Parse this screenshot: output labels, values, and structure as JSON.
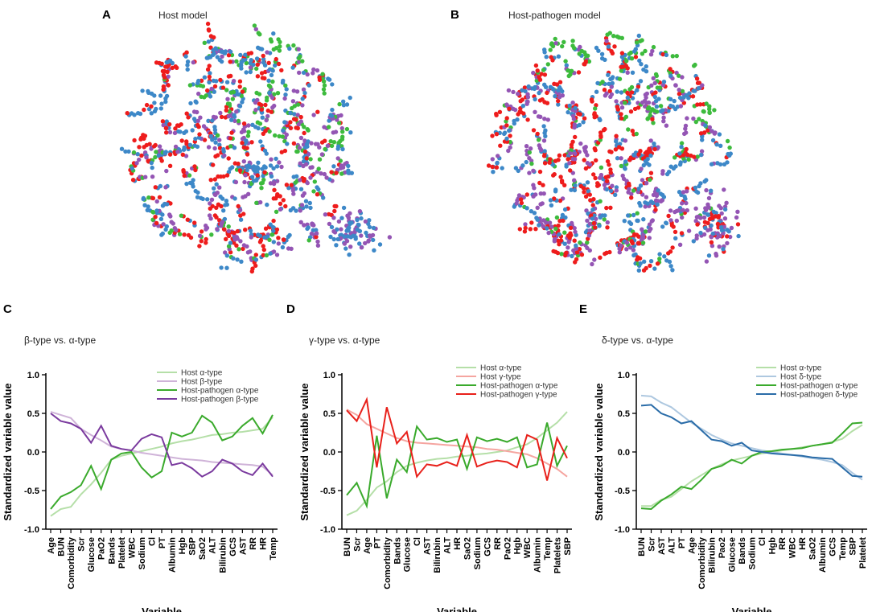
{
  "colors": {
    "red": "#ee1c1c",
    "blue": "#3d88c8",
    "green": "#3dbb3d",
    "purple": "#9455b4",
    "host_alpha": "#b5dfa8",
    "host_beta": "#cfb3d8",
    "host_gamma": "#f5a5a0",
    "host_delta": "#aec8e0",
    "hp_alpha": "#3aaa2c",
    "hp_beta": "#7a3a9e",
    "hp_gamma": "#e8201a",
    "hp_delta": "#2a6ca8"
  },
  "chart_data": [
    {
      "type": "scatter",
      "panel": "A",
      "title": "Host model",
      "series": [
        {
          "name": "red cluster",
          "color_key": "red",
          "approx_count": 500
        },
        {
          "name": "blue cluster",
          "color_key": "blue",
          "approx_count": 400
        },
        {
          "name": "green cluster",
          "color_key": "green",
          "approx_count": 250
        },
        {
          "name": "purple cluster",
          "color_key": "purple",
          "approx_count": 350
        }
      ]
    },
    {
      "type": "scatter",
      "panel": "B",
      "title": "Host-pathogen model",
      "series": [
        {
          "name": "red cluster",
          "color_key": "red",
          "approx_count": 450
        },
        {
          "name": "blue cluster",
          "color_key": "blue",
          "approx_count": 420
        },
        {
          "name": "green cluster",
          "color_key": "green",
          "approx_count": 260
        },
        {
          "name": "purple cluster",
          "color_key": "purple",
          "approx_count": 380
        }
      ]
    },
    {
      "type": "line",
      "panel": "C",
      "title": "β-type vs. α-type",
      "xlabel": "Variable",
      "ylabel": "Standardized variable value",
      "ylim": [
        -1.0,
        1.0
      ],
      "yticks": [
        "1.0",
        "0.5",
        "0.0",
        "-0.5",
        "-1.0"
      ],
      "categories": [
        "Age",
        "BUN",
        "Comorbidity",
        "Scr",
        "Glucose",
        "PaO2",
        "Bands",
        "Platelet",
        "WBC",
        "Sodium",
        "Cl",
        "PT",
        "Albumin",
        "Hgb",
        "SBP",
        "SaO2",
        "ALT",
        "Bilirubin",
        "GCS",
        "AST",
        "RR",
        "HR",
        "Temp"
      ],
      "series": [
        {
          "name": "Host α-type",
          "color_key": "host_alpha",
          "values": [
            -0.83,
            -0.74,
            -0.71,
            -0.55,
            -0.42,
            -0.27,
            -0.1,
            -0.05,
            -0.02,
            0.01,
            0.04,
            0.07,
            0.11,
            0.14,
            0.16,
            0.19,
            0.22,
            0.23,
            0.25,
            0.26,
            0.28,
            0.3,
            0.45
          ]
        },
        {
          "name": "Host β-type",
          "color_key": "host_beta",
          "values": [
            0.52,
            0.48,
            0.44,
            0.3,
            0.22,
            0.15,
            0.07,
            0.04,
            0.02,
            -0.01,
            -0.03,
            -0.05,
            -0.07,
            -0.09,
            -0.1,
            -0.11,
            -0.13,
            -0.14,
            -0.15,
            -0.16,
            -0.17,
            -0.19,
            -0.3
          ]
        },
        {
          "name": "Host-pathogen α-type",
          "color_key": "hp_alpha",
          "values": [
            -0.74,
            -0.58,
            -0.52,
            -0.43,
            -0.18,
            -0.48,
            -0.1,
            -0.02,
            0.0,
            -0.2,
            -0.33,
            -0.25,
            0.25,
            0.2,
            0.25,
            0.47,
            0.38,
            0.15,
            0.2,
            0.34,
            0.44,
            0.24,
            0.48
          ]
        },
        {
          "name": "Host-pathogen β-type",
          "color_key": "hp_beta",
          "values": [
            0.5,
            0.4,
            0.37,
            0.3,
            0.12,
            0.34,
            0.08,
            0.04,
            0.02,
            0.17,
            0.23,
            0.19,
            -0.17,
            -0.14,
            -0.21,
            -0.32,
            -0.25,
            -0.1,
            -0.15,
            -0.25,
            -0.3,
            -0.15,
            -0.32
          ]
        }
      ]
    },
    {
      "type": "line",
      "panel": "D",
      "title": "γ-type vs. α-type",
      "xlabel": "Variable",
      "ylabel": "Standardized variable value",
      "ylim": [
        -1.0,
        1.0
      ],
      "yticks": [
        "1.0",
        "0.5",
        "0.0",
        "-0.5",
        "-1.0"
      ],
      "categories": [
        "BUN",
        "Scr",
        "Age",
        "PT",
        "Comorbidity",
        "Bands",
        "Glucose",
        "Cl",
        "AST",
        "Bilirubin",
        "ALT",
        "HR",
        "SaO2",
        "Sodium",
        "GCS",
        "RR",
        "PaO2",
        "Hgb",
        "WBC",
        "Albumin",
        "Temp",
        "Platelets",
        "SBP"
      ],
      "series": [
        {
          "name": "Host α-type",
          "color_key": "host_alpha",
          "values": [
            -0.82,
            -0.76,
            -0.62,
            -0.46,
            -0.38,
            -0.26,
            -0.18,
            -0.14,
            -0.11,
            -0.09,
            -0.08,
            -0.06,
            -0.05,
            -0.03,
            -0.02,
            0.0,
            0.02,
            0.06,
            0.1,
            0.18,
            0.28,
            0.38,
            0.52
          ]
        },
        {
          "name": "Host γ-type",
          "color_key": "host_gamma",
          "values": [
            0.55,
            0.48,
            0.36,
            0.3,
            0.24,
            0.18,
            0.14,
            0.12,
            0.11,
            0.1,
            0.09,
            0.08,
            0.07,
            0.06,
            0.04,
            0.03,
            0.01,
            -0.01,
            -0.03,
            -0.08,
            -0.15,
            -0.22,
            -0.32
          ]
        },
        {
          "name": "Host-pathogen α-type",
          "color_key": "hp_alpha",
          "values": [
            -0.56,
            -0.4,
            -0.7,
            0.21,
            -0.6,
            -0.1,
            -0.26,
            0.33,
            0.16,
            0.18,
            0.13,
            0.16,
            -0.22,
            0.19,
            0.14,
            0.17,
            0.13,
            0.19,
            -0.2,
            -0.16,
            0.38,
            -0.18,
            0.08
          ]
        },
        {
          "name": "Host-pathogen γ-type",
          "color_key": "hp_gamma",
          "values": [
            0.54,
            0.4,
            0.68,
            -0.2,
            0.58,
            0.11,
            0.26,
            -0.32,
            -0.16,
            -0.18,
            -0.13,
            -0.18,
            0.22,
            -0.19,
            -0.14,
            -0.11,
            -0.13,
            -0.2,
            0.22,
            0.16,
            -0.37,
            0.18,
            -0.08
          ]
        }
      ]
    },
    {
      "type": "line",
      "panel": "E",
      "title": "δ-type vs. α-type",
      "xlabel": "Variable",
      "ylabel": "Standardized variable value",
      "ylim": [
        -1.0,
        1.0
      ],
      "yticks": [
        "1.0",
        "0.5",
        "0.0",
        "-0.5",
        "-1.0"
      ],
      "categories": [
        "BUN",
        "Scr",
        "AST",
        "ALT",
        "PT",
        "Age",
        "Comorbidity",
        "Bilirubin",
        "Pao2",
        "Glucose",
        "Bands",
        "Sodium",
        "Cl",
        "Hgb",
        "RR",
        "WBC",
        "HR",
        "SaO2",
        "Albumin",
        "GCS",
        "Temp",
        "SBP",
        "Platelet"
      ],
      "series": [
        {
          "name": "Host α-type",
          "color_key": "host_alpha",
          "values": [
            -0.7,
            -0.7,
            -0.62,
            -0.58,
            -0.48,
            -0.38,
            -0.3,
            -0.22,
            -0.16,
            -0.11,
            -0.08,
            -0.05,
            -0.02,
            0.0,
            0.02,
            0.04,
            0.06,
            0.08,
            0.1,
            0.13,
            0.17,
            0.27,
            0.35
          ]
        },
        {
          "name": "Host δ-type",
          "color_key": "host_delta",
          "values": [
            0.73,
            0.72,
            0.64,
            0.58,
            0.48,
            0.38,
            0.3,
            0.22,
            0.16,
            0.11,
            0.08,
            0.05,
            0.02,
            0.0,
            -0.02,
            -0.04,
            -0.06,
            -0.08,
            -0.1,
            -0.13,
            -0.17,
            -0.27,
            -0.36
          ]
        },
        {
          "name": "Host-pathogen α-type",
          "color_key": "hp_alpha",
          "values": [
            -0.73,
            -0.74,
            -0.63,
            -0.55,
            -0.45,
            -0.48,
            -0.36,
            -0.22,
            -0.18,
            -0.1,
            -0.15,
            -0.05,
            0.0,
            0.01,
            0.03,
            0.04,
            0.05,
            0.08,
            0.1,
            0.12,
            0.24,
            0.37,
            0.38
          ]
        },
        {
          "name": "Host-pathogen δ-type",
          "color_key": "hp_delta",
          "values": [
            0.6,
            0.61,
            0.5,
            0.45,
            0.37,
            0.4,
            0.28,
            0.16,
            0.14,
            0.08,
            0.12,
            0.02,
            0.0,
            -0.02,
            -0.03,
            -0.04,
            -0.05,
            -0.07,
            -0.08,
            -0.09,
            -0.2,
            -0.31,
            -0.32
          ]
        }
      ]
    }
  ]
}
